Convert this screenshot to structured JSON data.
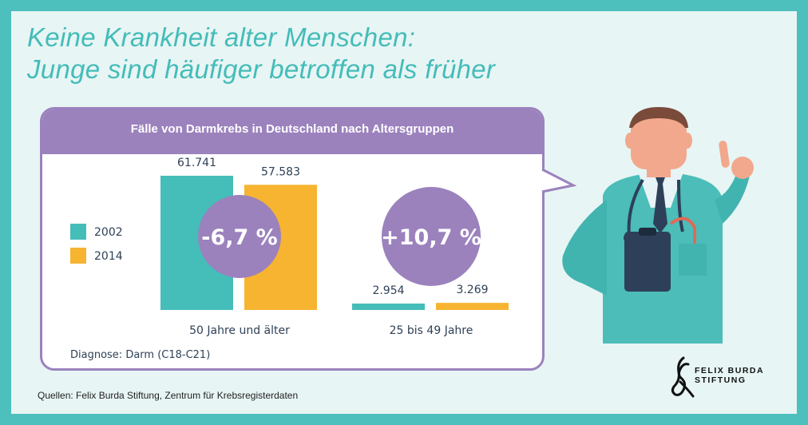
{
  "title": {
    "line1": "Keine Krankheit alter Menschen:",
    "line2": "Junge sind häufiger betroffen als früher"
  },
  "panel": {
    "heading": "Fälle von Darmkrebs in Deutschland nach Altersgruppen",
    "diagnosis": "Diagnose: Darm (C18-C21)"
  },
  "sources": "Quellen: Felix Burda Stiftung, Zentrum für Krebsregisterdaten",
  "logo": {
    "line1": "FELIX BURDA",
    "line2": "STIFTUNG"
  },
  "colors": {
    "2002": "#45bdb9",
    "2014": "#f7b431",
    "accent": "#9b82bd",
    "frame": "#4dbfbd"
  },
  "chart_data": {
    "type": "bar",
    "title": "Fälle von Darmkrebs in Deutschland nach Altersgruppen",
    "categories": [
      "50 Jahre und älter",
      "25 bis 49 Jahre"
    ],
    "series": [
      {
        "name": "2002",
        "values": [
          61741,
          2954
        ],
        "labels": [
          "61.741",
          "2.954"
        ]
      },
      {
        "name": "2014",
        "values": [
          57583,
          3269
        ],
        "labels": [
          "57.583",
          "3.269"
        ]
      }
    ],
    "changes": [
      "-6,7 %",
      "+10,7 %"
    ],
    "legend": "left",
    "grid": false,
    "ylim": [
      0,
      61741
    ]
  }
}
